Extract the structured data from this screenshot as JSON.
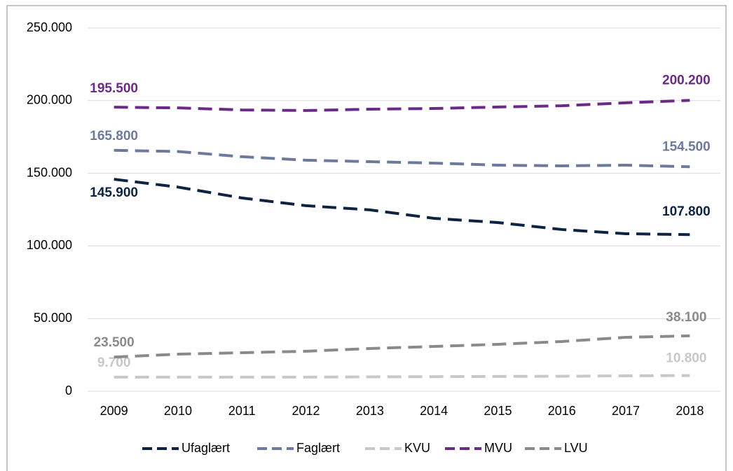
{
  "chart_data": {
    "type": "line",
    "categories": [
      "2009",
      "2010",
      "2011",
      "2012",
      "2013",
      "2014",
      "2015",
      "2016",
      "2017",
      "2018"
    ],
    "ylim": [
      0,
      250000
    ],
    "yticks": [
      0,
      {
        "value": 50000,
        "label": "50.000"
      },
      {
        "value": 100000,
        "label": "100.000"
      },
      {
        "value": 150000,
        "label": "150.000"
      },
      {
        "value": 200000,
        "label": "200.000"
      },
      {
        "value": 250000,
        "label": "250.000"
      }
    ],
    "grid": true,
    "legend": "bottom",
    "series": [
      {
        "name": "Ufaglært",
        "color": "#0e2341",
        "values": [
          145900,
          140500,
          133000,
          127700,
          124800,
          119000,
          116100,
          111300,
          108400,
          107800
        ],
        "value_labels": [
          "145.900",
          null,
          null,
          null,
          null,
          null,
          null,
          null,
          null,
          "107.800"
        ]
      },
      {
        "name": "Faglært",
        "color": "#6e7a9c",
        "values": [
          165800,
          165000,
          161400,
          159000,
          158000,
          157000,
          155600,
          155100,
          155600,
          154500
        ],
        "value_labels": [
          "165.800",
          null,
          null,
          null,
          null,
          null,
          null,
          null,
          null,
          "154.500"
        ]
      },
      {
        "name": "KVU",
        "color": "#c8c8c8",
        "values": [
          9700,
          9700,
          9700,
          9700,
          9900,
          10000,
          10200,
          10300,
          10600,
          10800
        ],
        "value_labels": [
          "9.700",
          null,
          null,
          null,
          null,
          null,
          null,
          null,
          null,
          "10.800"
        ]
      },
      {
        "name": "MVU",
        "color": "#6a2a86",
        "values": [
          195500,
          195000,
          193600,
          193200,
          194100,
          194600,
          195600,
          196500,
          198500,
          200200
        ],
        "value_labels": [
          "195.500",
          null,
          null,
          null,
          null,
          null,
          null,
          null,
          null,
          "200.200"
        ]
      },
      {
        "name": "LVU",
        "color": "#8a8a8a",
        "values": [
          23500,
          25500,
          26500,
          27500,
          29400,
          30800,
          32300,
          34200,
          37100,
          38100
        ],
        "value_labels": [
          "23.500",
          null,
          null,
          null,
          null,
          null,
          null,
          null,
          null,
          "38.100"
        ]
      }
    ]
  }
}
